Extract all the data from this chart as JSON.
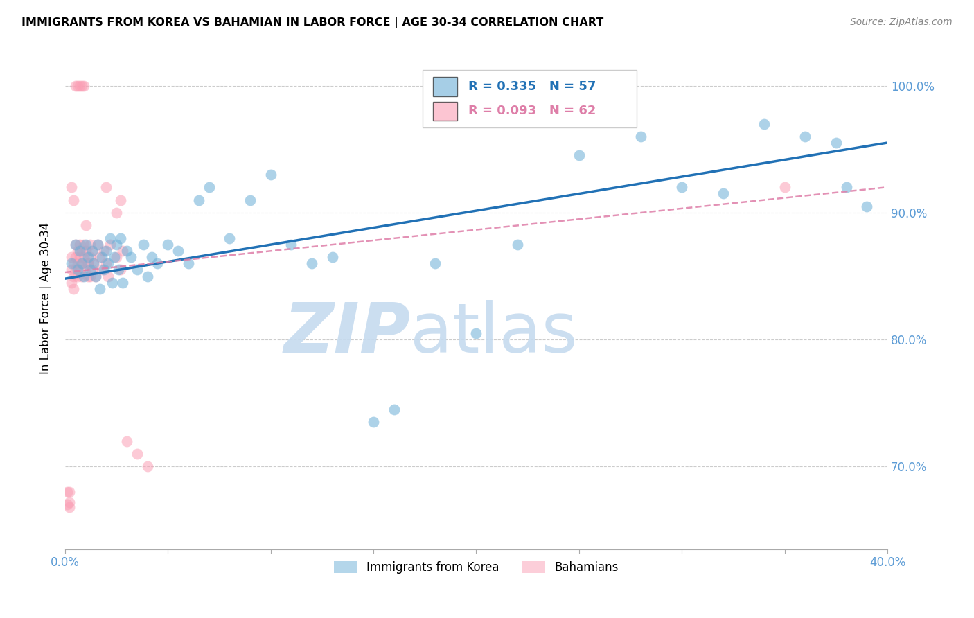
{
  "title": "IMMIGRANTS FROM KOREA VS BAHAMIAN IN LABOR FORCE | AGE 30-34 CORRELATION CHART",
  "source": "Source: ZipAtlas.com",
  "ylabel": "In Labor Force | Age 30-34",
  "xlim": [
    0.0,
    0.4
  ],
  "ylim": [
    0.635,
    1.03
  ],
  "xticks": [
    0.0,
    0.05,
    0.1,
    0.15,
    0.2,
    0.25,
    0.3,
    0.35,
    0.4
  ],
  "xticklabels": [
    "0.0%",
    "",
    "",
    "",
    "",
    "",
    "",
    "",
    "40.0%"
  ],
  "yticks": [
    0.7,
    0.8,
    0.9,
    1.0
  ],
  "yticklabels": [
    "70.0%",
    "80.0%",
    "90.0%",
    "100.0%"
  ],
  "legend_blue_text": "R = 0.335   N = 57",
  "legend_pink_text": "R = 0.093   N = 62",
  "legend_blue_label": "Immigrants from Korea",
  "legend_pink_label": "Bahamians",
  "blue_color": "#6baed6",
  "pink_color": "#fa9fb5",
  "blue_line_color": "#2171b5",
  "pink_line_color": "#de7ea8",
  "watermark_zip": "ZIP",
  "watermark_atlas": "atlas",
  "watermark_color": "#c6dbef",
  "background_color": "#ffffff",
  "grid_color": "#cccccc",
  "axis_color": "#5b9bd5",
  "blue_scatter_x": [
    0.003,
    0.005,
    0.006,
    0.007,
    0.008,
    0.009,
    0.01,
    0.011,
    0.012,
    0.013,
    0.014,
    0.015,
    0.016,
    0.017,
    0.018,
    0.019,
    0.02,
    0.021,
    0.022,
    0.023,
    0.024,
    0.025,
    0.026,
    0.027,
    0.028,
    0.03,
    0.032,
    0.035,
    0.038,
    0.04,
    0.042,
    0.045,
    0.05,
    0.055,
    0.06,
    0.065,
    0.07,
    0.08,
    0.09,
    0.1,
    0.11,
    0.12,
    0.13,
    0.15,
    0.16,
    0.18,
    0.2,
    0.22,
    0.25,
    0.28,
    0.3,
    0.32,
    0.34,
    0.36,
    0.375,
    0.38,
    0.39
  ],
  "blue_scatter_y": [
    0.86,
    0.875,
    0.855,
    0.87,
    0.86,
    0.85,
    0.875,
    0.865,
    0.855,
    0.87,
    0.86,
    0.85,
    0.875,
    0.84,
    0.865,
    0.855,
    0.87,
    0.86,
    0.88,
    0.845,
    0.865,
    0.875,
    0.855,
    0.88,
    0.845,
    0.87,
    0.865,
    0.855,
    0.875,
    0.85,
    0.865,
    0.86,
    0.875,
    0.87,
    0.86,
    0.91,
    0.92,
    0.88,
    0.91,
    0.93,
    0.875,
    0.86,
    0.865,
    0.735,
    0.745,
    0.86,
    0.805,
    0.875,
    0.945,
    0.96,
    0.92,
    0.915,
    0.97,
    0.96,
    0.955,
    0.92,
    0.905
  ],
  "pink_scatter_x": [
    0.001,
    0.001,
    0.002,
    0.002,
    0.002,
    0.003,
    0.003,
    0.003,
    0.004,
    0.004,
    0.004,
    0.005,
    0.005,
    0.005,
    0.006,
    0.006,
    0.006,
    0.007,
    0.007,
    0.007,
    0.008,
    0.008,
    0.008,
    0.009,
    0.009,
    0.01,
    0.01,
    0.011,
    0.011,
    0.012,
    0.012,
    0.013,
    0.013,
    0.014,
    0.015,
    0.016,
    0.017,
    0.018,
    0.019,
    0.02,
    0.021,
    0.022,
    0.025,
    0.027,
    0.028,
    0.03,
    0.035,
    0.04,
    0.003,
    0.004,
    0.005,
    0.006,
    0.007,
    0.008,
    0.009,
    0.02,
    0.025,
    0.027,
    0.01,
    0.011,
    0.012,
    0.35
  ],
  "pink_scatter_y": [
    0.67,
    0.68,
    0.668,
    0.672,
    0.68,
    0.865,
    0.855,
    0.845,
    0.86,
    0.85,
    0.84,
    0.875,
    0.865,
    0.855,
    0.87,
    0.86,
    0.85,
    0.875,
    0.865,
    0.855,
    0.87,
    0.86,
    0.85,
    0.875,
    0.865,
    0.855,
    0.87,
    0.86,
    0.85,
    0.875,
    0.865,
    0.855,
    0.87,
    0.86,
    0.85,
    0.875,
    0.865,
    0.855,
    0.87,
    0.86,
    0.85,
    0.875,
    0.865,
    0.855,
    0.87,
    0.72,
    0.71,
    0.7,
    0.92,
    0.91,
    1.0,
    1.0,
    1.0,
    1.0,
    1.0,
    0.92,
    0.9,
    0.91,
    0.89,
    0.86,
    0.85,
    0.92
  ],
  "blue_trend_x0": 0.0,
  "blue_trend_x1": 0.4,
  "blue_trend_y0": 0.848,
  "blue_trend_y1": 0.955,
  "pink_trend_x0": 0.0,
  "pink_trend_x1": 0.4,
  "pink_trend_y0": 0.853,
  "pink_trend_y1": 0.92
}
